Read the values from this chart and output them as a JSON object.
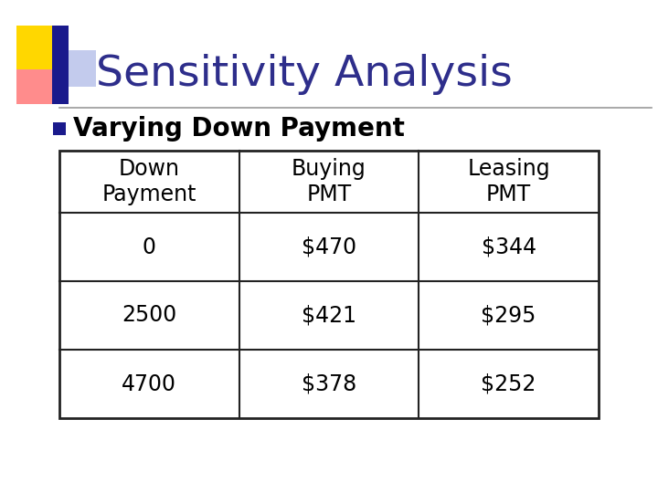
{
  "title": "Sensitivity Analysis",
  "title_color": "#2E2E8B",
  "title_fontsize": 34,
  "bullet_text": "Varying Down Payment",
  "bullet_color": "#000000",
  "bullet_fontsize": 20,
  "bullet_marker_color": "#1a1a8c",
  "background_color": "#ffffff",
  "table_headers": [
    "Down\nPayment",
    "Buying\nPMT",
    "Leasing\nPMT"
  ],
  "table_data": [
    [
      "0",
      "$470",
      "$344"
    ],
    [
      "2500",
      "$421",
      "$295"
    ],
    [
      "4700",
      "$378",
      "$252"
    ]
  ],
  "table_font_size": 17,
  "table_header_font_size": 17,
  "logo_yellow": "#FFD700",
  "logo_red": "#FF6666",
  "logo_blue": "#1a1a8c",
  "logo_lightblue": "#8899DD",
  "separator_color": "#999999",
  "table_edge_color": "#222222"
}
